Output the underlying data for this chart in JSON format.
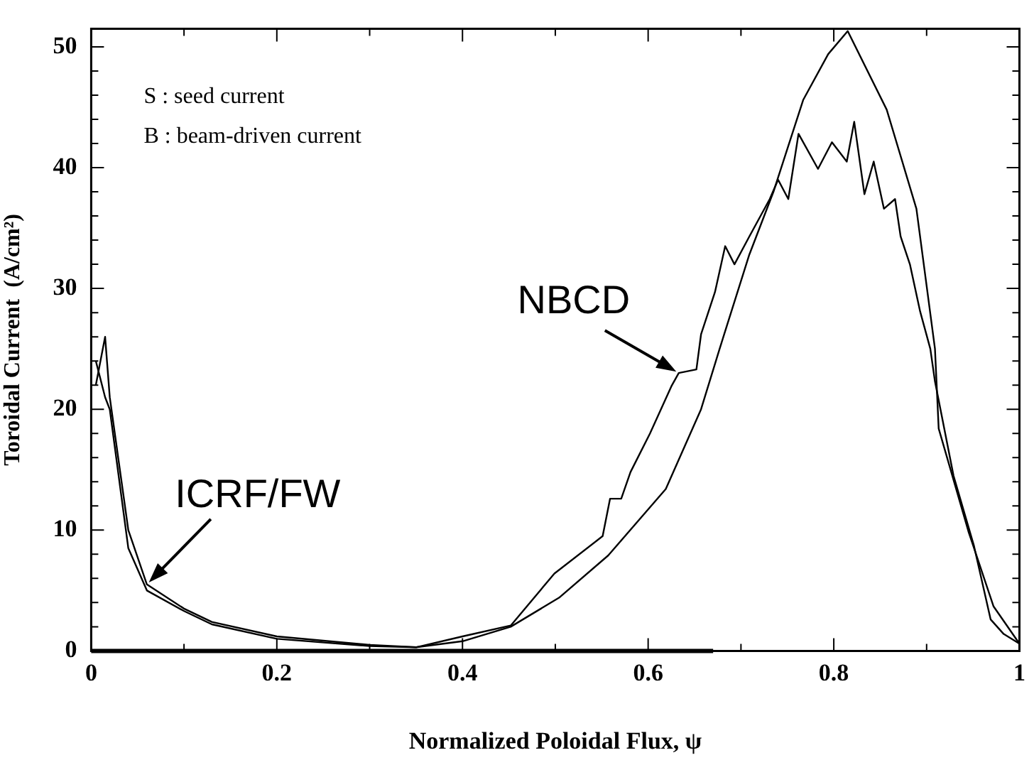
{
  "chart_data": {
    "type": "line",
    "xlabel": "Normalized Poloidal Flux, ψ",
    "ylabel": "Toroidal Current  (A/cm²)",
    "xlim": [
      0,
      1
    ],
    "ylim": [
      0,
      51.5
    ],
    "xticks": [
      0,
      {
        "value": 0.1,
        "label": null
      },
      {
        "value": 0.2,
        "label": "0.2"
      },
      {
        "value": 0.3,
        "label": null
      },
      {
        "value": 0.4,
        "label": "0.4"
      },
      {
        "value": 0.5,
        "label": null
      },
      {
        "value": 0.6,
        "label": "0.6"
      },
      {
        "value": 0.7,
        "label": null
      },
      {
        "value": 0.8,
        "label": "0.8"
      },
      {
        "value": 0.9,
        "label": null
      },
      1
    ],
    "yticks": [
      0,
      {
        "value": 2,
        "label": null
      },
      {
        "value": 4,
        "label": null
      },
      {
        "value": 6,
        "label": null
      },
      {
        "value": 8,
        "label": null
      },
      10,
      {
        "value": 12,
        "label": null
      },
      {
        "value": 14,
        "label": null
      },
      {
        "value": 16,
        "label": null
      },
      {
        "value": 18,
        "label": null
      },
      20,
      {
        "value": 22,
        "label": null
      },
      {
        "value": 24,
        "label": null
      },
      {
        "value": 26,
        "label": null
      },
      {
        "value": 28,
        "label": null
      },
      30,
      {
        "value": 32,
        "label": null
      },
      {
        "value": 34,
        "label": null
      },
      {
        "value": 36,
        "label": null
      },
      {
        "value": 38,
        "label": null
      },
      40,
      {
        "value": 42,
        "label": null
      },
      {
        "value": 44,
        "label": null
      },
      {
        "value": 46,
        "label": null
      },
      {
        "value": 48,
        "label": null
      },
      50
    ],
    "grid": false,
    "legend": false,
    "marker": "none",
    "line_style": "solid",
    "series": [
      {
        "color": "#000000",
        "x": [
          0.005,
          0.015,
          0.02,
          0.04,
          0.06,
          0.1,
          0.13,
          0.2,
          0.3,
          0.35,
          0.4,
          0.452,
          0.504,
          0.557,
          0.619,
          0.657,
          0.677,
          0.709,
          0.735,
          0.767,
          0.794,
          0.815,
          0.857,
          0.889,
          0.909,
          0.913,
          0.945,
          0.972,
          1.0
        ],
        "values": [
          22,
          26,
          21,
          10,
          5.5,
          3.5,
          2.4,
          1.2,
          0.5,
          0.3,
          0.8,
          2.0,
          4.4,
          7.9,
          13.4,
          20,
          25,
          32.8,
          38,
          45.6,
          49.4,
          51.3,
          44.8,
          36.6,
          25,
          18.4,
          9.9,
          3.7,
          0.6
        ]
      },
      {
        "color": "#000000",
        "x": [
          0.005,
          0.015,
          0.02,
          0.04,
          0.06,
          0.1,
          0.13,
          0.2,
          0.3,
          0.35,
          0.4,
          0.452,
          0.499,
          0.551,
          0.559,
          0.571,
          0.581,
          0.602,
          0.625,
          0.633,
          0.652,
          0.657,
          0.672,
          0.683,
          0.693,
          0.709,
          0.731,
          0.74,
          0.751,
          0.762,
          0.783,
          0.798,
          0.814,
          0.822,
          0.833,
          0.843,
          0.854,
          0.866,
          0.872,
          0.882,
          0.893,
          0.904,
          0.909,
          0.929,
          0.951,
          0.969,
          0.983,
          1.0
        ],
        "values": [
          24,
          21,
          20,
          8.5,
          5,
          3.3,
          2.2,
          1.0,
          0.4,
          0.3,
          1.2,
          2.1,
          6.4,
          9.5,
          12.6,
          12.6,
          14.8,
          18,
          21.9,
          23,
          23.3,
          26.2,
          29.7,
          33.5,
          32,
          34.3,
          37.4,
          39,
          37.4,
          42.8,
          39.9,
          42.1,
          40.5,
          43.8,
          37.8,
          40.5,
          36.6,
          37.4,
          34.3,
          32,
          28.1,
          25,
          22.3,
          14.5,
          8.7,
          2.6,
          1.4,
          0.6
        ]
      },
      {
        "color": "#000000",
        "x": [
          0,
          0.67
        ],
        "values": [
          0,
          0
        ]
      }
    ],
    "annotations": [
      "S : seed current",
      "B : beam-driven current",
      {
        "text": "NBCD",
        "x": 0.633,
        "y": 23
      },
      {
        "text": "ICRF/FW",
        "x": 0.06,
        "y": 5.5
      }
    ]
  }
}
